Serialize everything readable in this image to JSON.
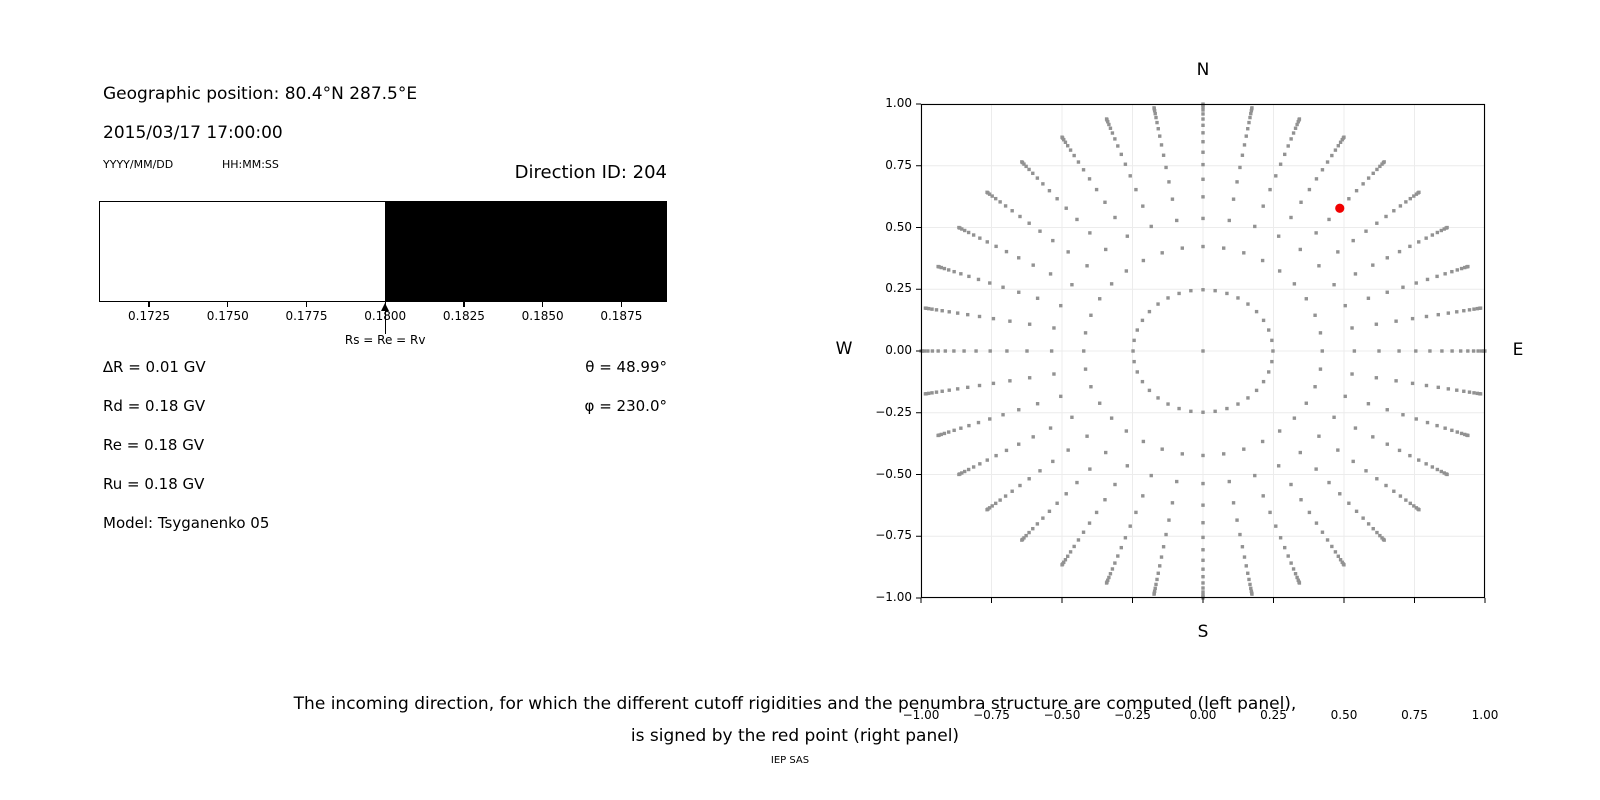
{
  "left_panel": {
    "geo_position": "Geographic position: 80.4°N 287.5°E",
    "datetime": "2015/03/17 17:00:00",
    "date_format": "YYYY/MM/DD",
    "time_format": "HH:MM:SS",
    "direction_id": "Direction ID: 204",
    "annotation": "Rs = Re = Rv",
    "params_left": [
      "∆R = 0.01 GV",
      "Rd = 0.18 GV",
      "Re = 0.18 GV",
      "Ru = 0.18 GV",
      "Model: Tsyganenko 05"
    ],
    "params_right": [
      "θ = 48.99°",
      "φ = 230.0°"
    ]
  },
  "caption": {
    "line1": "The incoming direction, for which the different cutoff rigidities and the penumbra structure are computed (left panel),",
    "line2": "is signed by the red point (right panel)",
    "credit": "IEP SAS"
  },
  "chart_data": [
    {
      "type": "area",
      "name": "penumbra-structure",
      "x_range": [
        0.17091,
        0.18895
      ],
      "boundary": 0.18,
      "segments": [
        {
          "from": 0.17091,
          "to": 0.18,
          "color": "#ffffff",
          "meaning": "allowed"
        },
        {
          "from": 0.18,
          "to": 0.18895,
          "color": "#000000",
          "meaning": "forbidden"
        }
      ],
      "x_ticks": [
        0.1725,
        0.175,
        0.1775,
        0.18,
        0.1825,
        0.185,
        0.1875
      ],
      "x_tick_labels": [
        "0.1725",
        "0.1750",
        "0.1775",
        "0.1800",
        "0.1825",
        "0.1850",
        "0.1875"
      ],
      "annotation": {
        "text": "Rs = Re = Rv",
        "x": 0.18
      }
    },
    {
      "type": "scatter",
      "name": "incoming-directions",
      "x_range": [
        -1,
        1
      ],
      "y_range": [
        -1,
        1
      ],
      "x_ticks": [
        -1,
        -0.75,
        -0.5,
        -0.25,
        0,
        0.25,
        0.5,
        0.75,
        1
      ],
      "x_tick_labels": [
        "−1.00",
        "−0.75",
        "−0.50",
        "−0.25",
        "0.00",
        "0.25",
        "0.50",
        "0.75",
        "1.00"
      ],
      "y_tick_labels": [
        "1.00",
        "0.75",
        "0.50",
        "0.25",
        "0.00",
        "−0.25",
        "−0.50",
        "−0.75",
        "−1.00"
      ],
      "compass": {
        "top": "N",
        "bottom": "S",
        "left": "W",
        "right": "E"
      },
      "grid_on": true,
      "grid_color": "#ececec",
      "dot_color": "#929292",
      "dot_size_px": 3.4,
      "direction_grid": {
        "azimuth_start_deg": 0,
        "azimuth_step_deg": 10,
        "azimuth_count": 36,
        "zenith_rings_deg": [
          14.36,
          25.02,
          32.46,
          38.62,
          44.05,
          48.99,
          53.58,
          57.91,
          62.05,
          66.03,
          69.9,
          73.66,
          77.36,
          81.01,
          84.62,
          88.21
        ],
        "radial_mapping": "r = sin(zenith), plot angle measured from N toward E",
        "center_dot": true
      },
      "red_point": {
        "plot_x": 0.485,
        "plot_y": 0.578,
        "theta_deg": 48.99,
        "phi_deg": 230.0,
        "direction_id": 204,
        "color": "#f10000",
        "radius_px": 4.6
      }
    }
  ]
}
